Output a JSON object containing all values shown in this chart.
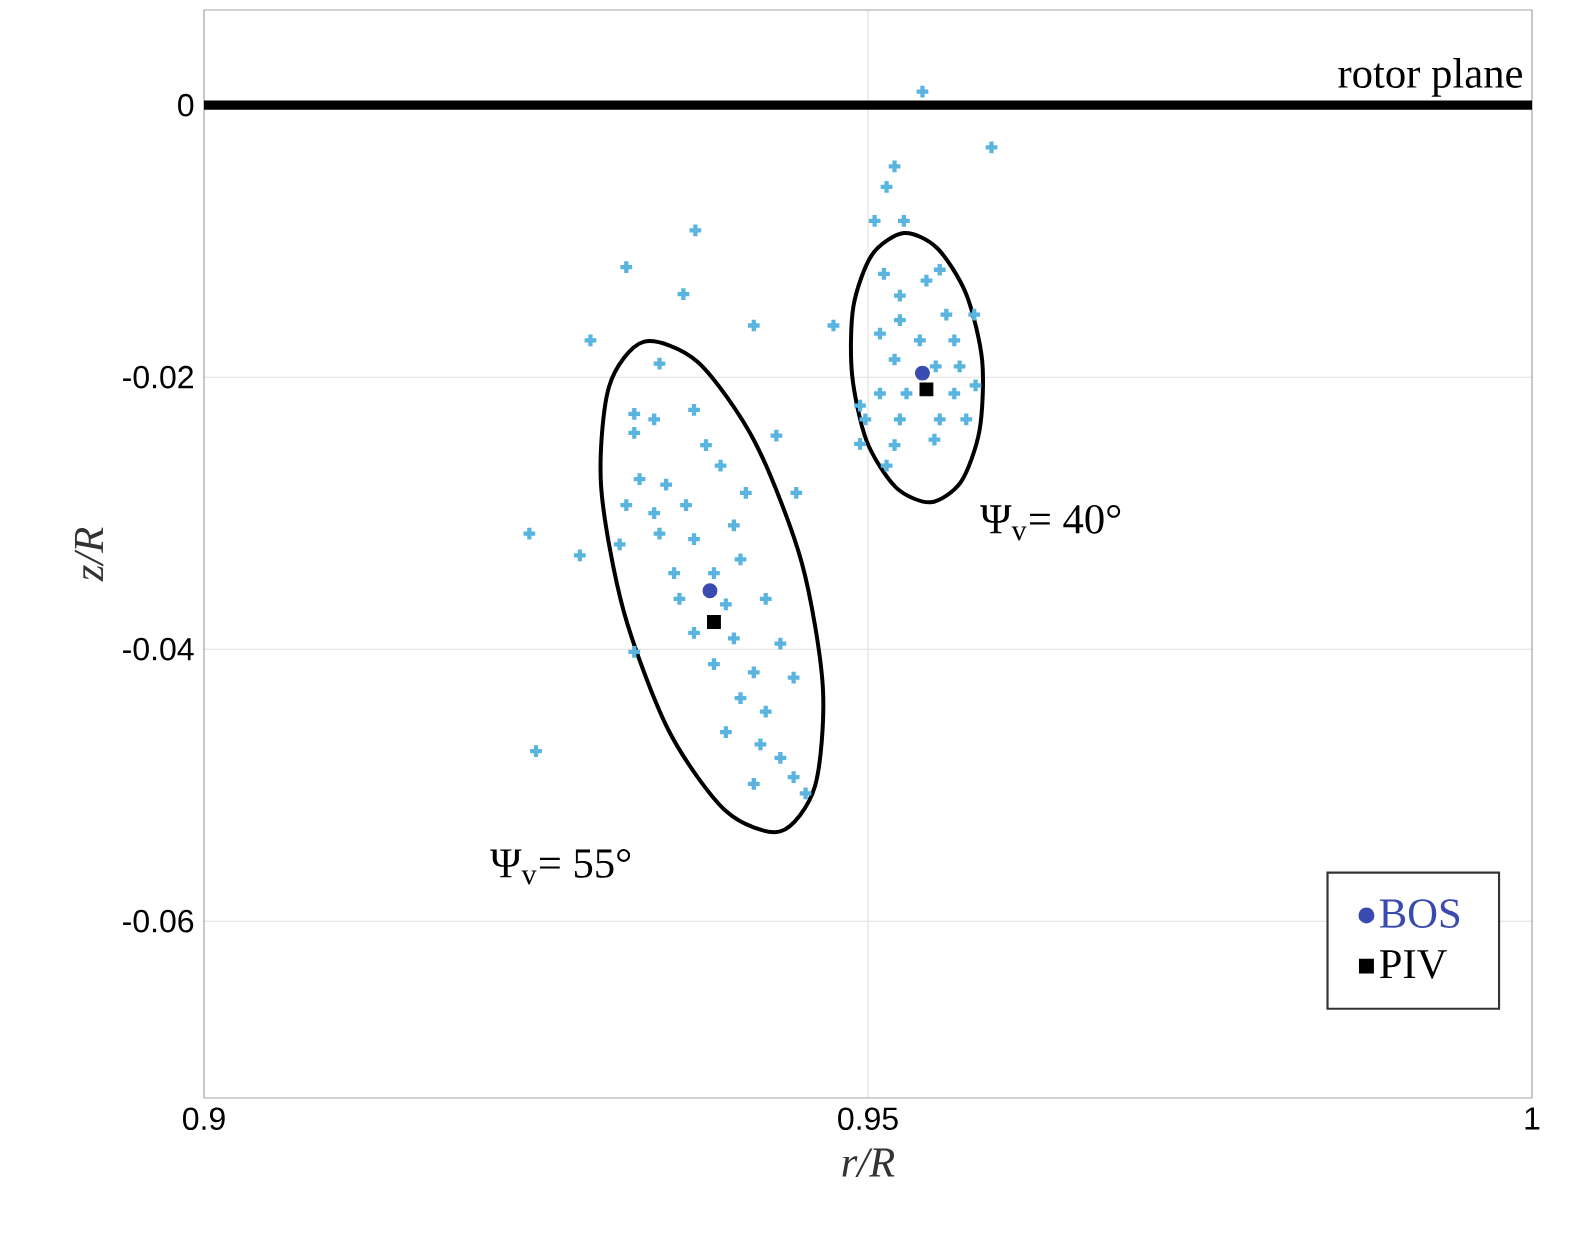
{
  "chart_data": {
    "type": "scatter",
    "xlabel": "r/R",
    "ylabel": "z/R",
    "xlim": [
      0.9,
      1.0
    ],
    "ylim": [
      -0.073,
      0.007
    ],
    "xticks": [
      0.9,
      0.95,
      1
    ],
    "yticks": [
      -0.06,
      -0.04,
      -0.02,
      0
    ],
    "grid": true,
    "legend": "bottom right",
    "series": [
      {
        "color": "#5ab4e0",
        "marker": "cross",
        "x": [
          0.937,
          0.9318,
          0.9361,
          0.9414,
          0.9291,
          0.9343,
          0.9369,
          0.9431,
          0.9446,
          0.9245,
          0.9283,
          0.925,
          0.9324,
          0.9324,
          0.9339,
          0.9378,
          0.9389,
          0.9328,
          0.9348,
          0.9318,
          0.9339,
          0.9363,
          0.9408,
          0.9313,
          0.9343,
          0.9369,
          0.9399,
          0.9354,
          0.9384,
          0.9404,
          0.9358,
          0.9393,
          0.9423,
          0.9324,
          0.9369,
          0.9399,
          0.9434,
          0.9384,
          0.9414,
          0.9444,
          0.9404,
          0.9423,
          0.9393,
          0.9419,
          0.9434,
          0.9414,
          0.9444,
          0.9453,
          0.9541,
          0.9593,
          0.952,
          0.9514,
          0.9505,
          0.9527,
          0.9512,
          0.9554,
          0.9524,
          0.9544,
          0.9474,
          0.9509,
          0.9559,
          0.958,
          0.9524,
          0.9539,
          0.9565,
          0.952,
          0.9551,
          0.9569,
          0.9509,
          0.9529,
          0.9565,
          0.9581,
          0.9498,
          0.9524,
          0.9554,
          0.9574,
          0.9494,
          0.952,
          0.955,
          0.9514,
          0.9494
        ],
        "values": [
          -0.0092,
          -0.0119,
          -0.0139,
          -0.0162,
          -0.0173,
          -0.019,
          -0.0224,
          -0.0243,
          -0.0285,
          -0.0315,
          -0.0331,
          -0.0475,
          -0.0227,
          -0.0241,
          -0.0231,
          -0.025,
          -0.0265,
          -0.0275,
          -0.0279,
          -0.0294,
          -0.03,
          -0.0294,
          -0.0285,
          -0.0323,
          -0.0315,
          -0.0319,
          -0.0309,
          -0.0344,
          -0.0344,
          -0.0334,
          -0.0363,
          -0.0367,
          -0.0363,
          -0.0402,
          -0.0388,
          -0.0392,
          -0.0396,
          -0.0411,
          -0.0417,
          -0.0421,
          -0.0436,
          -0.0446,
          -0.0461,
          -0.047,
          -0.048,
          -0.0499,
          -0.0494,
          -0.0506,
          0.001,
          -0.0031,
          -0.0045,
          -0.006,
          -0.0085,
          -0.0085,
          -0.0124,
          -0.0121,
          -0.014,
          -0.0129,
          -0.0162,
          -0.0168,
          -0.0154,
          -0.0154,
          -0.0158,
          -0.0173,
          -0.0173,
          -0.0187,
          -0.0192,
          -0.0192,
          -0.0212,
          -0.0212,
          -0.0212,
          -0.0206,
          -0.0231,
          -0.0231,
          -0.0231,
          -0.0231,
          -0.0249,
          -0.025,
          -0.0246,
          -0.0265,
          -0.0221
        ]
      },
      {
        "name": "BOS",
        "color": "#3a4bb0",
        "marker": "circle",
        "x": [
          0.9381,
          0.9541
        ],
        "values": [
          -0.0357,
          -0.0197
        ]
      },
      {
        "name": "PIV",
        "color": "#000000",
        "marker": "square",
        "x": [
          0.9384,
          0.9544
        ],
        "values": [
          -0.038,
          -0.0209
        ]
      }
    ],
    "ref_lines": [
      {
        "axis": "y",
        "value": 0,
        "label": "rotor plane",
        "color": "#000000",
        "line_style": "solid"
      }
    ],
    "annotations": [
      "Ψ$_{v}$= 40°",
      "Ψ$_{v}$= 55°"
    ]
  }
}
